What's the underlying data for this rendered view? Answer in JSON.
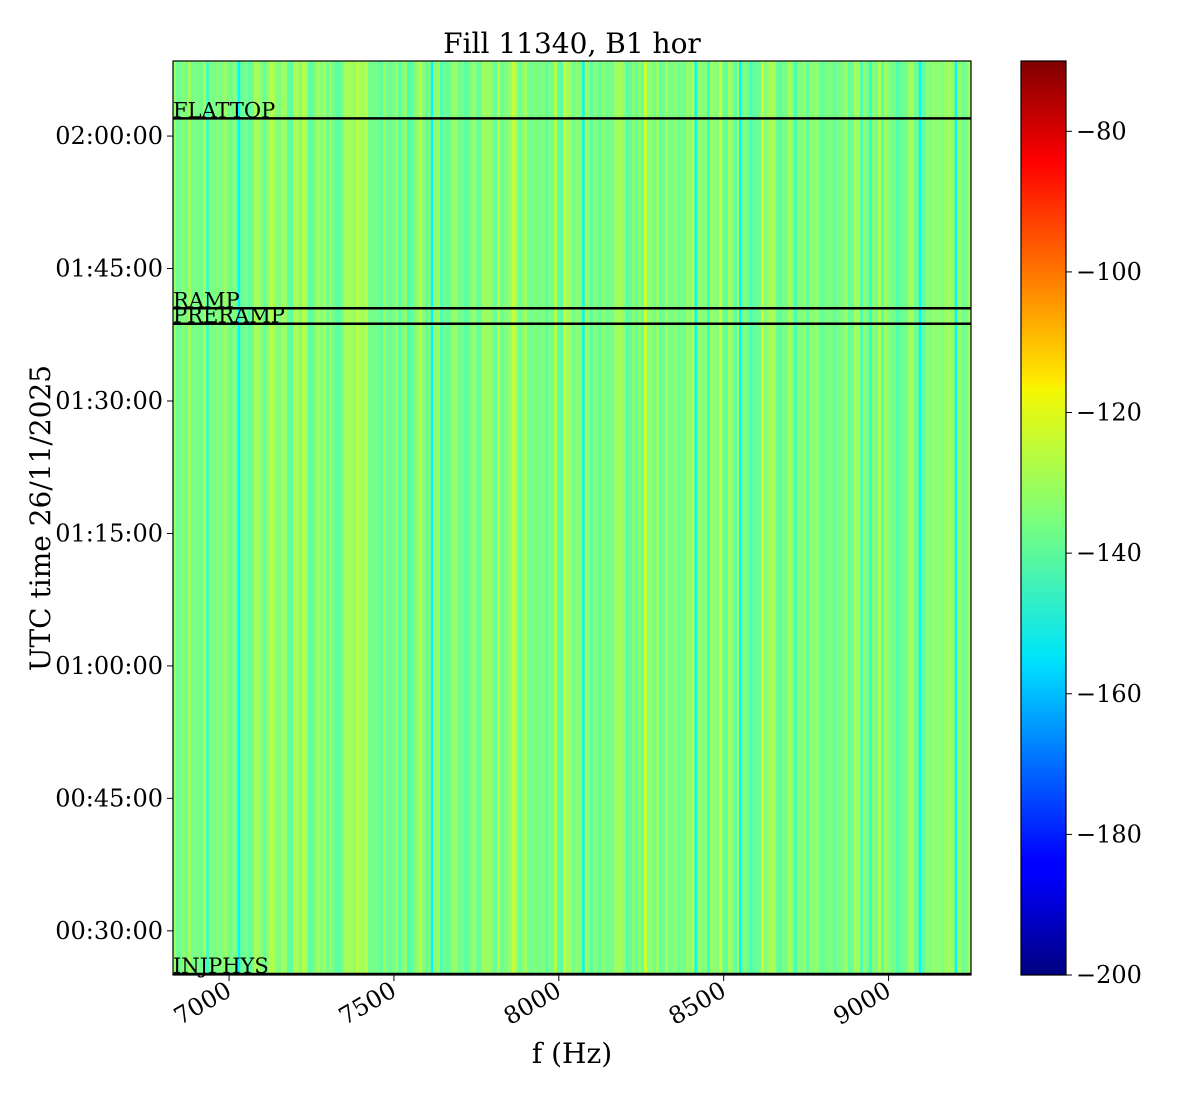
{
  "chart_data": {
    "type": "heatmap",
    "title": "Fill 11340, B1 hor",
    "xlabel": "f (Hz)",
    "ylabel": "UTC time 26/11/2025",
    "xlim": [
      6830,
      9250
    ],
    "ylim": [
      "00:25:00",
      "02:08:30"
    ],
    "x_ticks": [
      7000,
      7500,
      8000,
      8500,
      9000
    ],
    "y_ticks": [
      "00:30:00",
      "00:45:00",
      "01:00:00",
      "01:15:00",
      "01:30:00",
      "01:45:00",
      "02:00:00"
    ],
    "colorbar": {
      "colormap": "jet",
      "range": [
        -200,
        -70
      ],
      "ticks": [
        -80,
        -100,
        -120,
        -140,
        -160,
        -180,
        -200
      ]
    },
    "events": [
      {
        "label": "FLATTOP",
        "time": "02:02:00"
      },
      {
        "label": "RAMP",
        "time": "01:40:30"
      },
      {
        "label": "PRERAMP",
        "time": "01:38:45"
      },
      {
        "label": "INJPHYS",
        "time": "00:25:00"
      }
    ],
    "narrow_lines_hz": [
      7030,
      7615,
      8075,
      8415,
      8550,
      9095,
      9205
    ],
    "background_level": -135
  }
}
